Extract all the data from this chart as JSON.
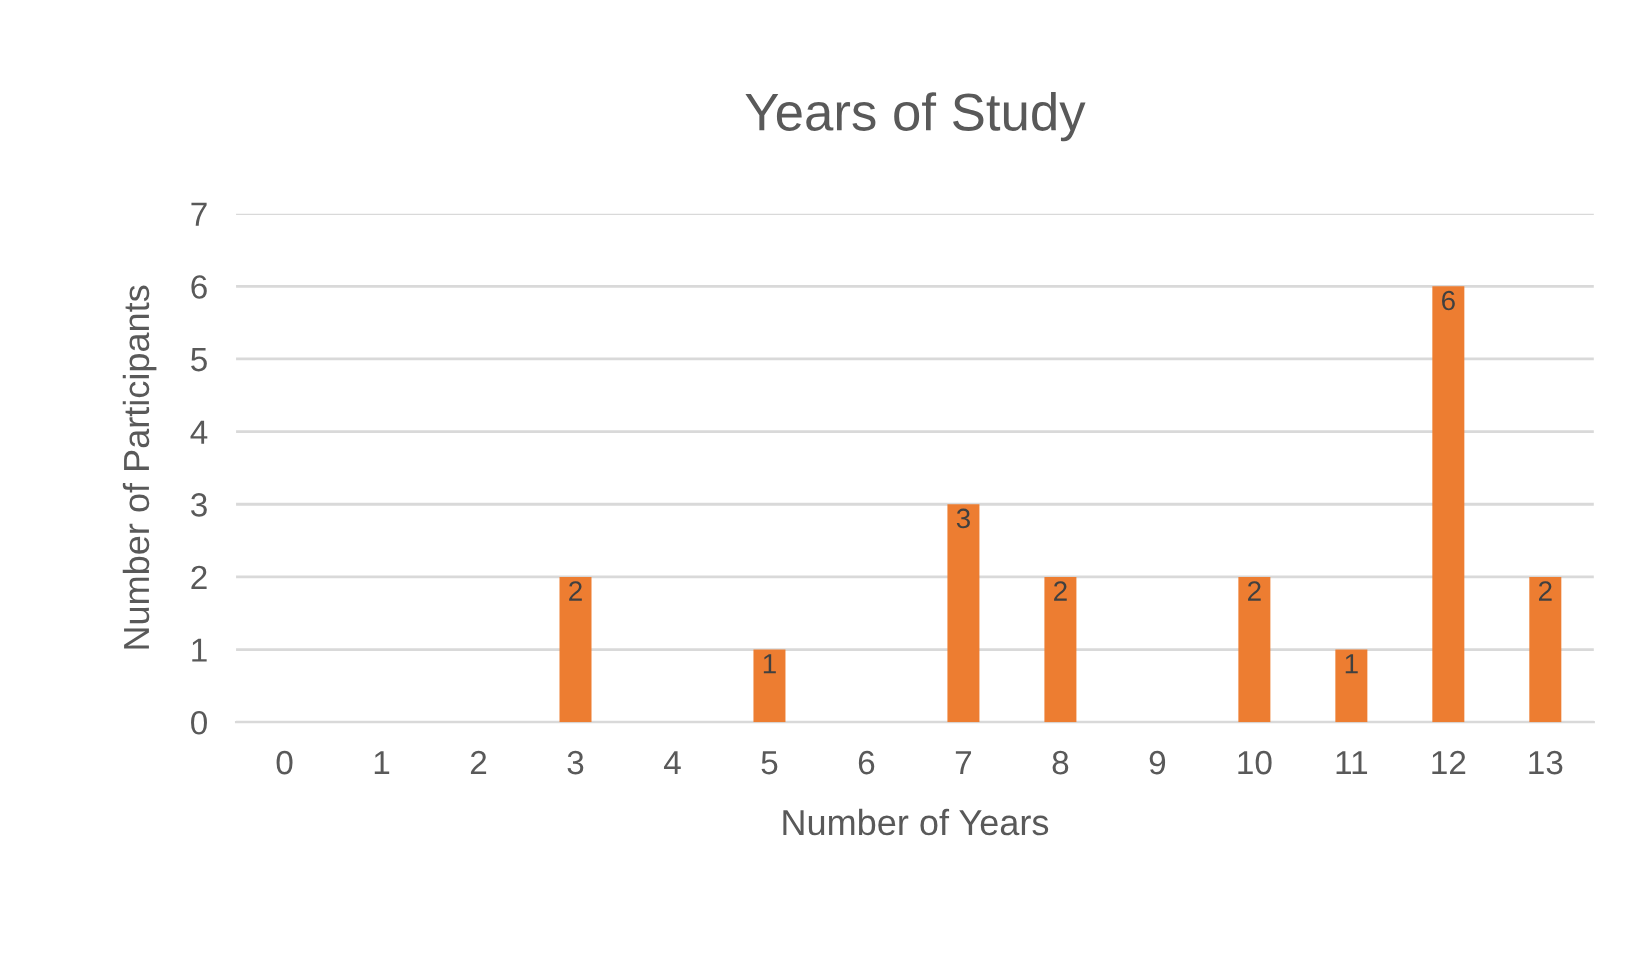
{
  "chart_data": {
    "type": "bar",
    "title": "Years of Study",
    "xlabel": "Number of Years",
    "ylabel": "Number of Participants",
    "categories": [
      "0",
      "1",
      "2",
      "3",
      "4",
      "5",
      "6",
      "7",
      "8",
      "9",
      "10",
      "11",
      "12",
      "13"
    ],
    "values": [
      0,
      0,
      0,
      2,
      0,
      1,
      0,
      3,
      2,
      0,
      2,
      1,
      6,
      2
    ],
    "value_labels": [
      null,
      null,
      null,
      "2",
      null,
      "1",
      null,
      "3",
      "2",
      null,
      "2",
      "1",
      "6",
      "2"
    ],
    "color": "#ed7d31",
    "ylim": [
      0,
      7
    ],
    "yticks": [
      0,
      1,
      2,
      3,
      4,
      5,
      6,
      7
    ],
    "grid": "y",
    "legend": false
  }
}
